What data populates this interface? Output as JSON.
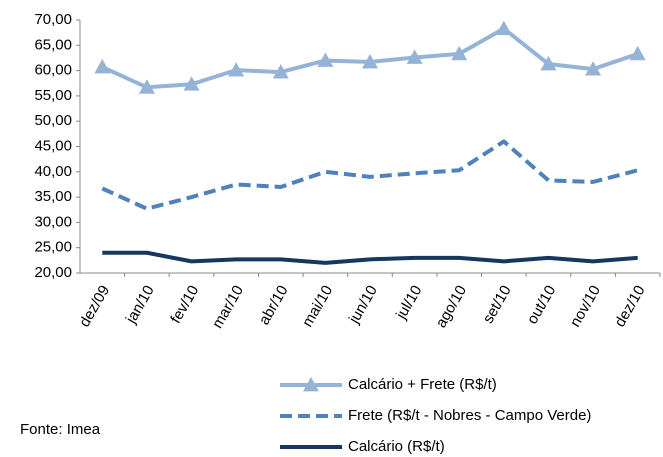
{
  "chart_data": {
    "type": "line",
    "categories": [
      "dez/09",
      "jan/10",
      "fev/10",
      "mar/10",
      "abr/10",
      "mai/10",
      "jun/10",
      "jul/10",
      "ago/10",
      "set/10",
      "out/10",
      "nov/10",
      "dez/10"
    ],
    "series": [
      {
        "name": "Calcário + Frete (R$/t)",
        "color": "#95b3d7",
        "marker": "triangle",
        "dash": false,
        "values": [
          60.7,
          56.7,
          57.3,
          60.1,
          59.7,
          62.0,
          61.7,
          62.6,
          63.3,
          68.3,
          61.3,
          60.3,
          63.3
        ]
      },
      {
        "name": "Frete (R$/t - Nobres - Campo Verde)",
        "color": "#4f81bd",
        "marker": "none",
        "dash": true,
        "values": [
          36.7,
          32.7,
          35.0,
          37.5,
          37.0,
          40.0,
          39.0,
          39.7,
          40.3,
          46.0,
          38.3,
          38.0,
          40.3
        ]
      },
      {
        "name": "Calcário (R$/t)",
        "color": "#17375e",
        "marker": "none",
        "dash": false,
        "values": [
          24.0,
          24.0,
          22.3,
          22.7,
          22.7,
          22.0,
          22.7,
          23.0,
          23.0,
          22.3,
          23.0,
          22.3,
          23.0
        ]
      }
    ],
    "ylim": [
      20,
      70
    ],
    "yticks": [
      {
        "value": 20,
        "label": "20,00"
      },
      {
        "value": 25,
        "label": "25,00"
      },
      {
        "value": 30,
        "label": "30,00"
      },
      {
        "value": 35,
        "label": "35,00"
      },
      {
        "value": 40,
        "label": "40,00"
      },
      {
        "value": 45,
        "label": "45,00"
      },
      {
        "value": 50,
        "label": "50,00"
      },
      {
        "value": 55,
        "label": "55,00"
      },
      {
        "value": 60,
        "label": "60,00"
      },
      {
        "value": 65,
        "label": "65,00"
      },
      {
        "value": 70,
        "label": "70,00"
      }
    ],
    "grid": false,
    "legend": "bottom",
    "source": "Fonte: Imea"
  }
}
